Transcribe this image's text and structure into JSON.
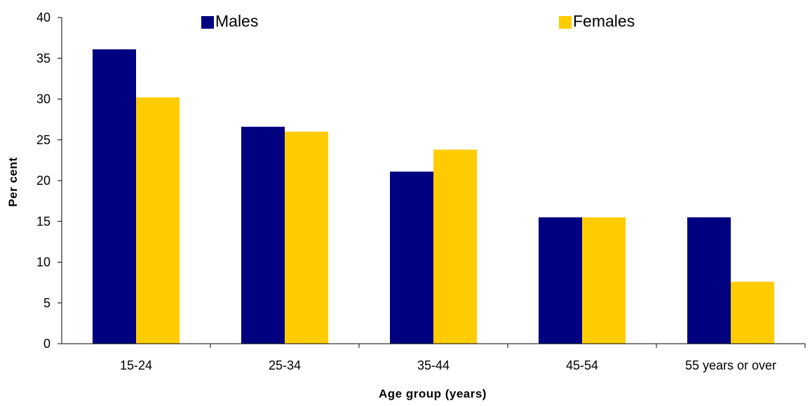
{
  "chart_data": {
    "type": "bar",
    "title": "",
    "xlabel": "Age group (years)",
    "ylabel": "Per cent",
    "categories": [
      "15-24",
      "25-34",
      "35-44",
      "45-54",
      "55 years or over"
    ],
    "series": [
      {
        "name": "Males",
        "color": "#000080",
        "values": [
          36.1,
          26.6,
          21.1,
          15.5,
          15.5
        ]
      },
      {
        "name": "Females",
        "color": "#FFCC00",
        "values": [
          30.2,
          26.0,
          23.8,
          15.5,
          7.6
        ]
      }
    ],
    "ylim": [
      0,
      40
    ],
    "yticks": [
      "0",
      "5",
      "10",
      "15",
      "20",
      "25",
      "30",
      "35",
      "40"
    ],
    "grid": false,
    "legend": "top"
  }
}
